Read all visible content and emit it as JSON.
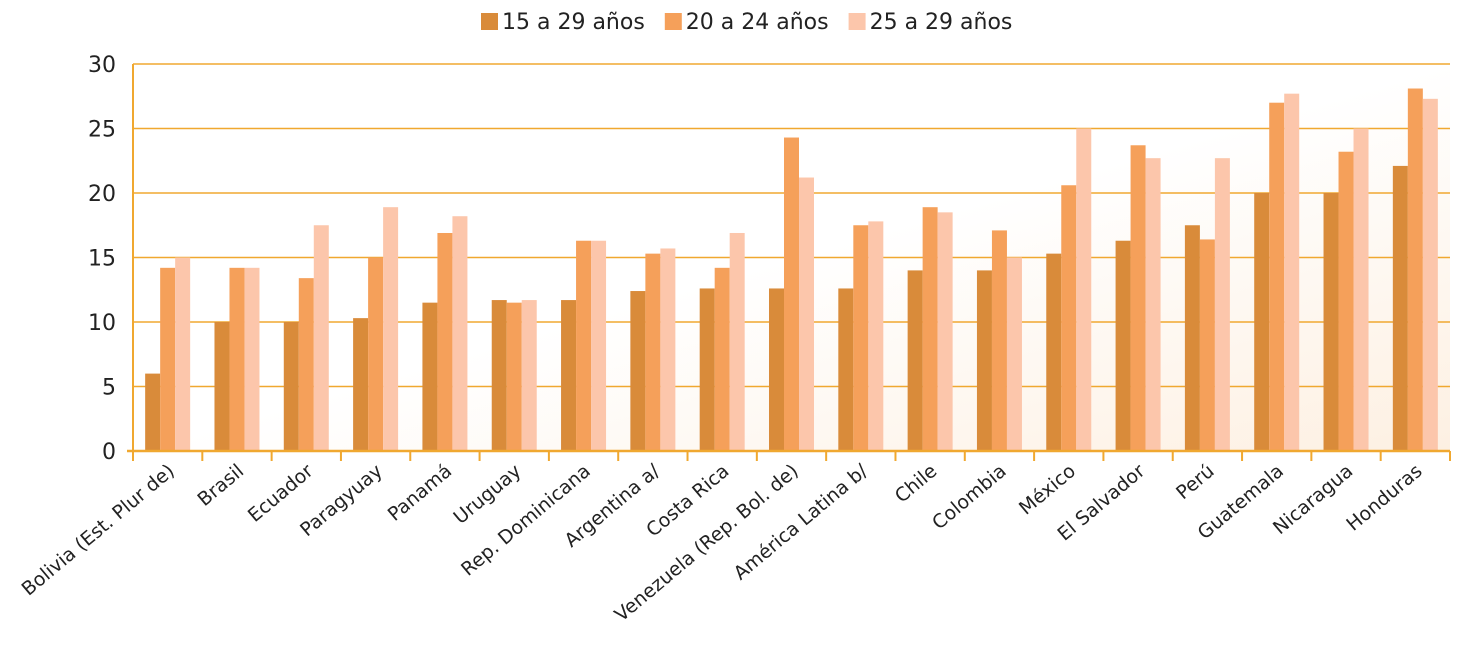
{
  "chart_data": {
    "type": "bar",
    "categories": [
      "Bolivia (Est. Plur de)",
      "Brasil",
      "Ecuador",
      "Paragyuay",
      "Panamá",
      "Uruguay",
      "Rep. Dominicana",
      "Argentina a/",
      "Costa Rica",
      "Venezuela (Rep. Bol. de)",
      "América Latina b/",
      "Chile",
      "Colombia",
      "México",
      "El Salvador",
      "Perú",
      "Guatemala",
      "Nicaragua",
      "Honduras"
    ],
    "series": [
      {
        "name": "15 a 29 años",
        "color": "#d98b3a",
        "values": [
          6,
          10,
          10,
          10.3,
          11.5,
          11.7,
          11.7,
          12.4,
          12.6,
          12.6,
          12.6,
          14,
          14,
          15.3,
          16.3,
          17.5,
          20,
          20,
          22.1
        ]
      },
      {
        "name": "20 a 24 años",
        "color": "#f5a05a",
        "values": [
          14.2,
          14.2,
          13.4,
          15,
          16.9,
          11.5,
          16.3,
          15.3,
          14.2,
          24.3,
          17.5,
          18.9,
          17.1,
          20.6,
          23.7,
          16.4,
          27,
          23.2,
          28.1
        ]
      },
      {
        "name": "25 a 29 años",
        "color": "#fcc6ab",
        "values": [
          15,
          14.2,
          17.5,
          18.9,
          18.2,
          11.7,
          16.3,
          15.7,
          16.9,
          21.2,
          17.8,
          18.5,
          15,
          25,
          22.7,
          22.7,
          27.7,
          25,
          27.3
        ]
      }
    ],
    "ylim": [
      0,
      30
    ],
    "yticks": [
      0,
      5,
      10,
      15,
      20,
      25,
      30
    ],
    "grid": true
  }
}
